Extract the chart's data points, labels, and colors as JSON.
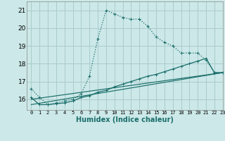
{
  "xlabel": "Humidex (Indice chaleur)",
  "xlim": [
    -0.5,
    23
  ],
  "ylim": [
    15.4,
    21.5
  ],
  "yticks": [
    16,
    17,
    18,
    19,
    20,
    21
  ],
  "xticks": [
    0,
    1,
    2,
    3,
    4,
    5,
    6,
    7,
    8,
    9,
    10,
    11,
    12,
    13,
    14,
    15,
    16,
    17,
    18,
    19,
    20,
    21,
    22,
    23
  ],
  "bg_color": "#cce8e8",
  "grid_color": "#aacccc",
  "line_color": "#1a6e6a",
  "line1_x": [
    0,
    1,
    2,
    3,
    4,
    5,
    6,
    7,
    8,
    9,
    10,
    11,
    12,
    13,
    14,
    15,
    16,
    17,
    18,
    19,
    20,
    21,
    22,
    23
  ],
  "line1_y": [
    16.6,
    16.1,
    15.7,
    15.8,
    15.9,
    16.0,
    16.3,
    17.3,
    19.4,
    21.0,
    20.8,
    20.6,
    20.5,
    20.5,
    20.1,
    19.5,
    19.2,
    19.0,
    18.6,
    18.6,
    18.6,
    18.2,
    17.5,
    17.5
  ],
  "line2_x": [
    0,
    1,
    2,
    3,
    4,
    5,
    6,
    7,
    8,
    9,
    10,
    11,
    12,
    13,
    14,
    15,
    16,
    17,
    18,
    19,
    20,
    21,
    22,
    23
  ],
  "line2_y": [
    16.1,
    15.7,
    15.7,
    15.75,
    15.8,
    15.9,
    16.1,
    16.2,
    16.4,
    16.5,
    16.7,
    16.85,
    17.0,
    17.15,
    17.3,
    17.4,
    17.55,
    17.7,
    17.85,
    18.0,
    18.15,
    18.3,
    17.5,
    17.5
  ],
  "line3_x": [
    0,
    23
  ],
  "line3_y": [
    16.0,
    17.5
  ],
  "line4_x": [
    0,
    23
  ],
  "line4_y": [
    15.7,
    17.5
  ]
}
